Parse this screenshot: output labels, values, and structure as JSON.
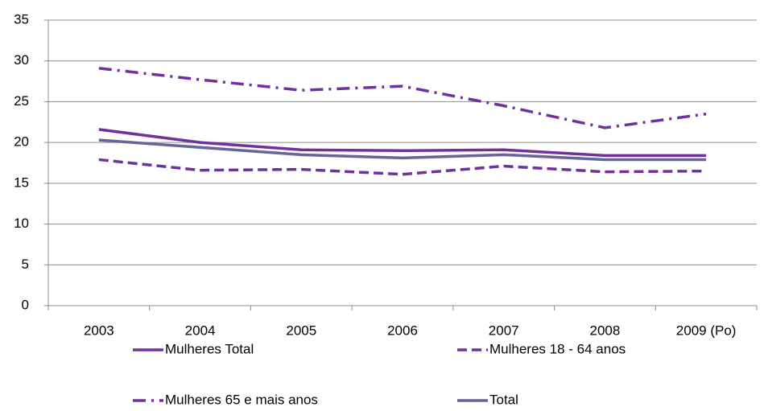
{
  "chart_data": {
    "type": "line",
    "categories": [
      "2003",
      "2004",
      "2005",
      "2006",
      "2007",
      "2008",
      "2009 (Po)"
    ],
    "series": [
      {
        "name": "Mulheres Total",
        "color": "#7030a0",
        "dash": "solid",
        "values": [
          21.6,
          20.0,
          19.1,
          19.0,
          19.1,
          18.4,
          18.4
        ]
      },
      {
        "name": "Mulheres 18 - 64 anos",
        "color": "#7030a0",
        "dash": "dashed",
        "values": [
          17.9,
          16.6,
          16.7,
          16.1,
          17.1,
          16.4,
          16.5
        ]
      },
      {
        "name": "Mulheres 65 e mais anos",
        "color": "#7030a0",
        "dash": "dashdot",
        "values": [
          29.1,
          27.7,
          26.4,
          26.9,
          24.5,
          21.8,
          23.5
        ]
      },
      {
        "name": "Total",
        "color": "#65659a",
        "dash": "solid",
        "values": [
          20.3,
          19.4,
          18.5,
          18.1,
          18.5,
          17.9,
          17.9
        ]
      }
    ],
    "ylim": [
      0,
      35
    ],
    "yticks": [
      0,
      5,
      10,
      15,
      20,
      25,
      30,
      35
    ],
    "grid": true
  }
}
